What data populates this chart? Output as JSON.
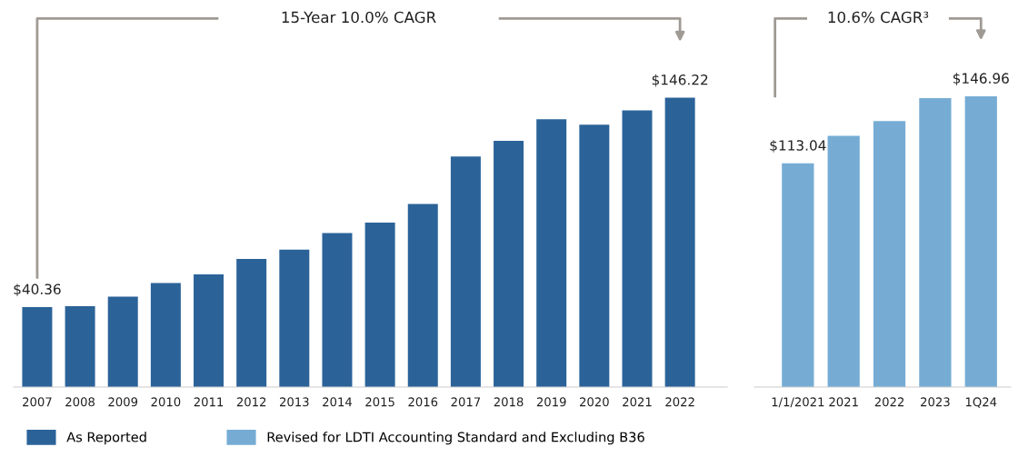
{
  "chart_data": [
    {
      "type": "bar",
      "categories": [
        "2007",
        "2008",
        "2009",
        "2010",
        "2011",
        "2012",
        "2013",
        "2014",
        "2015",
        "2016",
        "2017",
        "2018",
        "2019",
        "2020",
        "2021",
        "2022"
      ],
      "series": [
        {
          "name": "As Reported",
          "color": "#2b6399",
          "values": [
            40.36,
            40.9,
            45.7,
            52.6,
            57.0,
            64.7,
            69.5,
            77.9,
            83.1,
            92.5,
            116.5,
            124.5,
            135.4,
            132.6,
            139.8,
            146.22
          ],
          "value_labels": [
            "$40.36",
            null,
            null,
            null,
            null,
            null,
            null,
            null,
            null,
            null,
            null,
            null,
            null,
            null,
            null,
            "$146.22"
          ]
        }
      ],
      "annotations": [
        "15-Year 10.0% CAGR"
      ],
      "legend": "bottom"
    },
    {
      "type": "bar",
      "categories": [
        "1/1/2021",
        "2021",
        "2022",
        "2023",
        "1Q24"
      ],
      "series": [
        {
          "name": "Revised for LDTI Accounting Standard and Excluding B36",
          "color": "#76acd4",
          "values": [
            113.04,
            127.0,
            134.4,
            146.0,
            146.96
          ],
          "value_labels": [
            "$113.04",
            null,
            null,
            null,
            "$146.96"
          ]
        }
      ],
      "annotations": [
        "10.6% CAGR³"
      ],
      "legend": "bottom"
    }
  ]
}
